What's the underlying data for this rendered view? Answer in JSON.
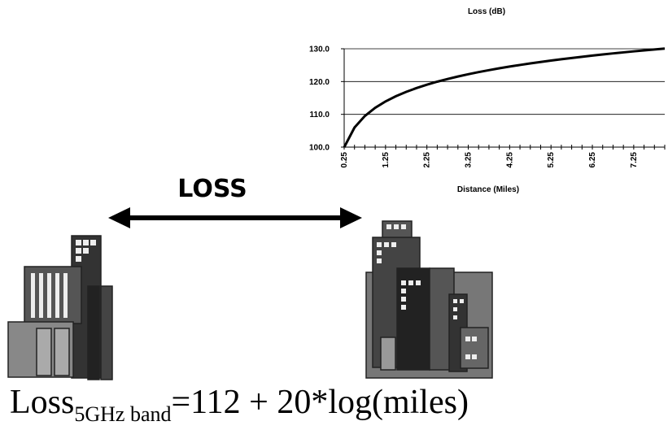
{
  "chart_data": {
    "type": "line",
    "title": "Loss (dB)",
    "x_label": "Distance (Miles)",
    "categories": [
      "0.25",
      null,
      null,
      null,
      "1.25",
      null,
      null,
      null,
      "2.25",
      null,
      null,
      null,
      "3.25",
      null,
      null,
      null,
      "4.25",
      null,
      null,
      null,
      "5.25",
      null,
      null,
      null,
      "6.25",
      null,
      null,
      null,
      "7.25",
      null,
      null,
      null
    ],
    "values": [
      99.96,
      105.98,
      109.5,
      112.0,
      113.94,
      115.52,
      116.86,
      118.02,
      119.04,
      119.96,
      120.79,
      121.54,
      122.24,
      122.88,
      123.48,
      124.04,
      124.57,
      125.06,
      125.53,
      125.98,
      126.4,
      126.81,
      127.19,
      127.56,
      127.92,
      128.26,
      128.59,
      128.9,
      129.21,
      129.5,
      129.79,
      130.06
    ],
    "color": "#000000",
    "ylim": [
      100,
      130
    ],
    "yticks": [
      {
        "value": 100,
        "label": "100.0"
      },
      {
        "value": 110,
        "label": "110.0"
      },
      {
        "value": 120,
        "label": "120.0"
      },
      {
        "value": 130,
        "label": "130.0"
      }
    ],
    "grid": true
  },
  "arrow_label": "LOSS",
  "formula": {
    "main": "Loss",
    "subscript": "5GHz band",
    "rest": "=112 + 20*log(miles)"
  }
}
